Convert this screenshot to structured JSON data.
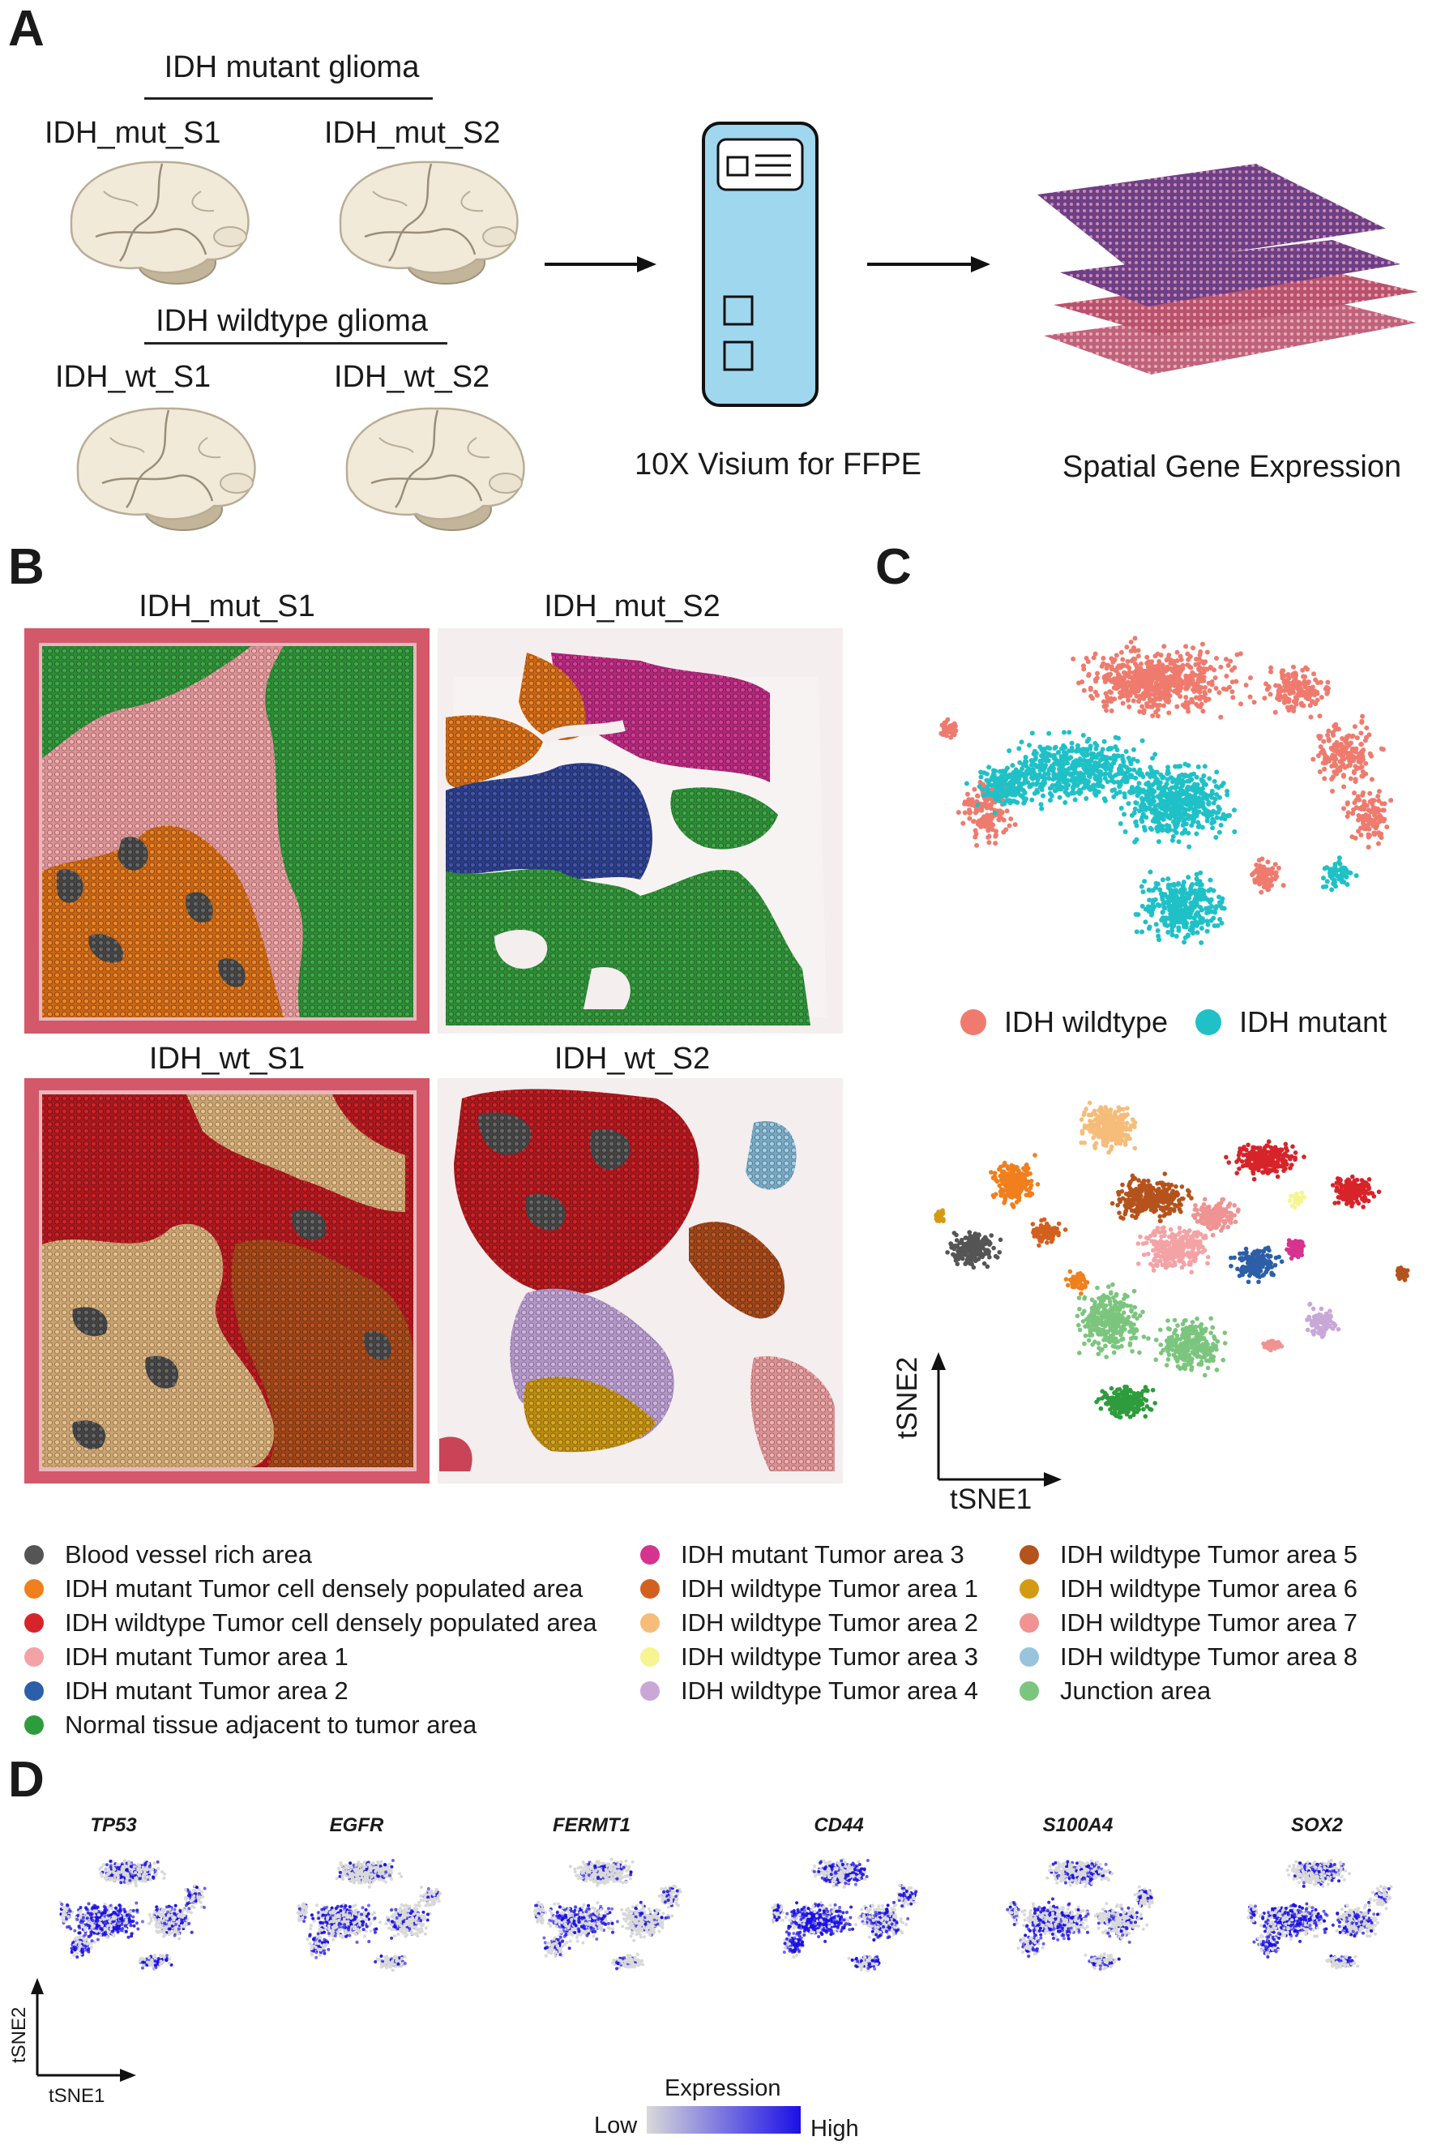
{
  "panelA": {
    "label": "A",
    "mutant_title": "IDH mutant glioma",
    "wildtype_title": "IDH wildtype glioma",
    "samples": [
      "IDH_mut_S1",
      "IDH_mut_S2",
      "IDH_wt_S1",
      "IDH_wt_S2"
    ],
    "visium_caption": "10X Visium for FFPE",
    "spatial_caption": "Spatial Gene Expression"
  },
  "panelB": {
    "label": "B",
    "titles": [
      "IDH_mut_S1",
      "IDH_mut_S2",
      "IDH_wt_S1",
      "IDH_wt_S2"
    ]
  },
  "panelC": {
    "label": "C",
    "group_legend": [
      {
        "label": "IDH wildtype",
        "color": "#ee7b6e"
      },
      {
        "label": "IDH mutant",
        "color": "#1fc1c7"
      }
    ],
    "axis_x": "tSNE1",
    "axis_y": "tSNE2"
  },
  "legend": [
    {
      "label": "Blood vessel rich area",
      "color": "#555555"
    },
    {
      "label": "IDH mutant Tumor cell densely populated area",
      "color": "#f07f1e"
    },
    {
      "label": "IDH wildtype Tumor cell densely populated area",
      "color": "#d7242a"
    },
    {
      "label": "IDH mutant Tumor area 1",
      "color": "#f3a3a6"
    },
    {
      "label": "IDH mutant Tumor area 2",
      "color": "#2d5fa8"
    },
    {
      "label": "Normal tissue adjacent to tumor area",
      "color": "#2e9c3c"
    },
    {
      "label": "IDH mutant Tumor area 3",
      "color": "#d6338e"
    },
    {
      "label": "IDH wildtype Tumor area 1",
      "color": "#d2601f"
    },
    {
      "label": "IDH wildtype Tumor area 2",
      "color": "#f5bd79"
    },
    {
      "label": "IDH wildtype Tumor area 3",
      "color": "#f7f591"
    },
    {
      "label": "IDH wildtype Tumor area 4",
      "color": "#c9a8d8"
    },
    {
      "label": "IDH wildtype Tumor area 5",
      "color": "#b5531d"
    },
    {
      "label": "IDH wildtype Tumor area 6",
      "color": "#d59a14"
    },
    {
      "label": "IDH wildtype Tumor area 7",
      "color": "#ef9393"
    },
    {
      "label": "IDH wildtype Tumor area 8",
      "color": "#98c5dc"
    },
    {
      "label": "Junction area",
      "color": "#7cc57e"
    }
  ],
  "panelD": {
    "label": "D",
    "genes": [
      "TP53",
      "EGFR",
      "FERMT1",
      "CD44",
      "S100A4",
      "SOX2"
    ],
    "axis_x": "tSNE1",
    "axis_y": "tSNE2",
    "colorbar_title": "Expression",
    "low_label": "Low",
    "high_label": "High",
    "low_color": "#d9d9d9",
    "high_color": "#1a10e6"
  }
}
